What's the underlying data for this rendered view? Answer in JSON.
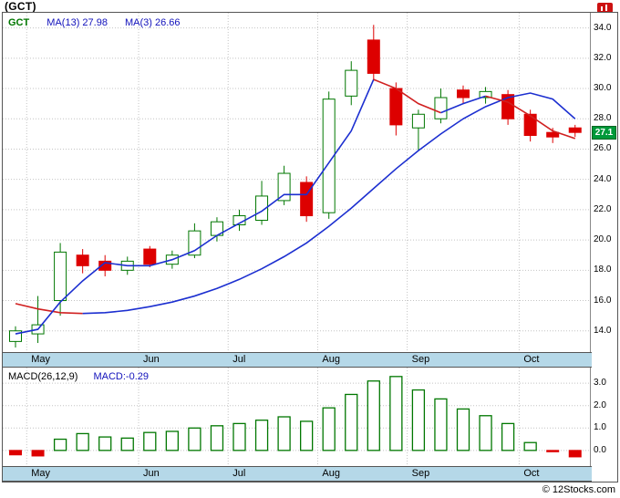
{
  "header": {
    "title": "(GCT)"
  },
  "icons": {
    "brand_icon": "red-chart-badge"
  },
  "price_panel": {
    "legend": {
      "symbol": "GCT",
      "ma13": "MA(13) 27.98",
      "ma3": "MA(3) 26.66"
    },
    "last_price_label": "27.1"
  },
  "macd_panel": {
    "legend_name": "MACD(26,12,9)",
    "legend_value": "MACD:-0.29"
  },
  "footer": {
    "copyright": "© 12Stocks.com"
  },
  "colors": {
    "up": "#007700",
    "down": "#dd0000",
    "ma_up": "#1c2fd0",
    "ma_down": "#d02020",
    "badge_bg": "#00993a",
    "band_bg": "#b5d8e8",
    "grid": "#c4c4c4",
    "frame_border": "#555555"
  },
  "chart_data": [
    {
      "type": "candlestick",
      "title": "GCT weekly candlestick chart",
      "x_tick_labels": [
        "May",
        "Jun",
        "Jul",
        "Aug",
        "Sep",
        "Oct"
      ],
      "x_month_start_indices": [
        1,
        6,
        10,
        14,
        18,
        23
      ],
      "ylim": [
        12.6,
        35.0
      ],
      "y_ticks": [
        14,
        16,
        18,
        20,
        22,
        24,
        26,
        28,
        30,
        32,
        34
      ],
      "last_price": 27.1,
      "candles": [
        {
          "o": 13.3,
          "h": 14.3,
          "l": 12.9,
          "c": 14.0
        },
        {
          "o": 13.8,
          "h": 16.3,
          "l": 13.2,
          "c": 14.4
        },
        {
          "o": 16.0,
          "h": 19.8,
          "l": 15.0,
          "c": 19.2
        },
        {
          "o": 19.0,
          "h": 19.4,
          "l": 17.8,
          "c": 18.3
        },
        {
          "o": 18.6,
          "h": 19.0,
          "l": 17.6,
          "c": 18.0
        },
        {
          "o": 18.0,
          "h": 18.9,
          "l": 17.7,
          "c": 18.6
        },
        {
          "o": 19.4,
          "h": 19.6,
          "l": 18.2,
          "c": 18.4
        },
        {
          "o": 18.4,
          "h": 19.3,
          "l": 18.1,
          "c": 19.0
        },
        {
          "o": 19.0,
          "h": 21.1,
          "l": 18.8,
          "c": 20.6
        },
        {
          "o": 20.3,
          "h": 21.5,
          "l": 19.9,
          "c": 21.2
        },
        {
          "o": 21.0,
          "h": 22.0,
          "l": 20.6,
          "c": 21.6
        },
        {
          "o": 21.3,
          "h": 23.9,
          "l": 21.0,
          "c": 22.9
        },
        {
          "o": 22.6,
          "h": 24.9,
          "l": 22.3,
          "c": 24.4
        },
        {
          "o": 23.8,
          "h": 24.2,
          "l": 21.2,
          "c": 21.6
        },
        {
          "o": 21.8,
          "h": 29.8,
          "l": 21.4,
          "c": 29.3
        },
        {
          "o": 29.5,
          "h": 31.8,
          "l": 28.9,
          "c": 31.2
        },
        {
          "o": 33.2,
          "h": 34.2,
          "l": 30.5,
          "c": 31.0
        },
        {
          "o": 30.0,
          "h": 30.4,
          "l": 26.9,
          "c": 27.6
        },
        {
          "o": 27.4,
          "h": 28.6,
          "l": 25.9,
          "c": 28.3
        },
        {
          "o": 28.0,
          "h": 30.0,
          "l": 27.7,
          "c": 29.4
        },
        {
          "o": 29.9,
          "h": 30.2,
          "l": 29.0,
          "c": 29.4
        },
        {
          "o": 29.4,
          "h": 30.1,
          "l": 29.0,
          "c": 29.8
        },
        {
          "o": 29.6,
          "h": 29.9,
          "l": 27.6,
          "c": 28.0
        },
        {
          "o": 28.3,
          "h": 28.6,
          "l": 26.5,
          "c": 26.9
        },
        {
          "o": 27.1,
          "h": 27.4,
          "l": 26.4,
          "c": 26.8
        },
        {
          "o": 27.4,
          "h": 27.6,
          "l": 26.8,
          "c": 27.1
        }
      ],
      "ma13": {
        "period": 13,
        "last": 27.98,
        "values": [
          15.8,
          15.45,
          15.2,
          15.15,
          15.2,
          15.35,
          15.6,
          15.9,
          16.3,
          16.8,
          17.4,
          18.1,
          18.9,
          19.8,
          20.9,
          22.1,
          23.4,
          24.7,
          25.9,
          27.0,
          28.0,
          28.8,
          29.4,
          29.7,
          29.3,
          28.0
        ],
        "segments": [
          {
            "trend": "down",
            "from": 0,
            "to": 3
          },
          {
            "trend": "up",
            "from": 3,
            "to": 25
          }
        ]
      },
      "ma3": {
        "period": 3,
        "last": 26.66,
        "values": [
          13.8,
          14.1,
          15.9,
          17.3,
          18.5,
          18.3,
          18.3,
          18.7,
          19.3,
          20.3,
          21.1,
          21.9,
          23.0,
          23.0,
          25.1,
          27.2,
          30.6,
          30.0,
          29.0,
          28.4,
          29.0,
          29.5,
          29.1,
          28.2,
          27.2,
          26.7
        ],
        "segments": [
          {
            "trend": "up",
            "from": 0,
            "to": 16
          },
          {
            "trend": "down",
            "from": 16,
            "to": 19
          },
          {
            "trend": "up",
            "from": 19,
            "to": 21
          },
          {
            "trend": "down",
            "from": 21,
            "to": 25
          }
        ]
      }
    },
    {
      "type": "bar",
      "title": "MACD(26,12,9)",
      "last": -0.29,
      "x_tick_labels": [
        "May",
        "Jun",
        "Jul",
        "Aug",
        "Sep",
        "Oct"
      ],
      "ylim": [
        -0.7,
        3.7
      ],
      "y_ticks": [
        0,
        1,
        2,
        3
      ],
      "values": [
        -0.2,
        -0.25,
        0.5,
        0.75,
        0.6,
        0.55,
        0.8,
        0.85,
        1.0,
        1.1,
        1.2,
        1.35,
        1.5,
        1.3,
        1.9,
        2.5,
        3.1,
        3.3,
        2.7,
        2.3,
        1.85,
        1.55,
        1.2,
        0.35,
        -0.05,
        -0.29
      ]
    }
  ]
}
